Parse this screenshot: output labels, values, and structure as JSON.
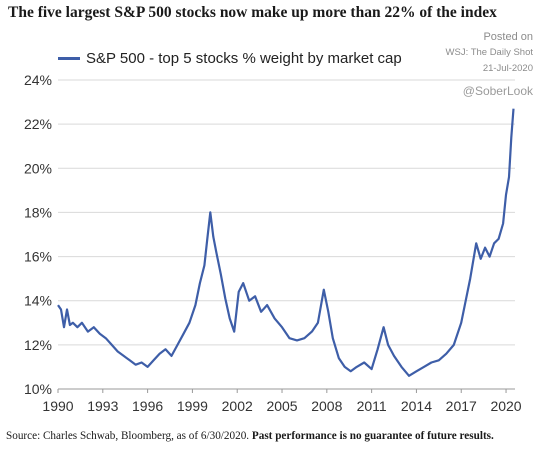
{
  "title": "The five largest S&P 500 stocks now make up more than 22% of the index",
  "credit": {
    "posted": "Posted on",
    "source": "WSJ: The Daily Shot",
    "date": "21-Jul-2020",
    "handle": "@SoberLook"
  },
  "footer": {
    "source": "Source: Charles Schwab, Bloomberg, as of 6/30/2020.",
    "disclaimer": "Past performance is no guarantee of future results."
  },
  "colors": {
    "series": "#3e5ea8",
    "grid": "#d9d9d9",
    "axis": "#999999"
  },
  "chart_data": {
    "type": "line",
    "title": "The five largest S&P 500 stocks now make up more than 22% of the index",
    "xlabel": "",
    "ylabel": "",
    "xlim": [
      1990,
      2020.6
    ],
    "ylim": [
      10,
      24
    ],
    "grid": true,
    "legend_position": "top-left",
    "x_ticks": [
      1990,
      1993,
      1996,
      1999,
      2002,
      2005,
      2008,
      2011,
      2014,
      2017,
      2020
    ],
    "y_ticks": [
      10,
      12,
      14,
      16,
      18,
      20,
      22,
      24
    ],
    "y_tick_labels": [
      "10%",
      "12%",
      "14%",
      "16%",
      "18%",
      "20%",
      "22%",
      "24%"
    ],
    "series": [
      {
        "name": "S&P 500 - top 5 stocks % weight by market cap",
        "x": [
          1990,
          1990.2,
          1990.4,
          1990.6,
          1990.8,
          1991,
          1991.3,
          1991.6,
          1992,
          1992.4,
          1992.8,
          1993.2,
          1993.6,
          1994,
          1994.4,
          1994.8,
          1995.2,
          1995.6,
          1996,
          1996.4,
          1996.8,
          1997.2,
          1997.6,
          1998,
          1998.4,
          1998.8,
          1999.2,
          1999.5,
          1999.8,
          2000,
          2000.2,
          2000.4,
          2000.6,
          2000.9,
          2001.2,
          2001.5,
          2001.8,
          2002.1,
          2002.4,
          2002.8,
          2003.2,
          2003.6,
          2004,
          2004.5,
          2005,
          2005.5,
          2006,
          2006.5,
          2007,
          2007.4,
          2007.8,
          2008.1,
          2008.4,
          2008.8,
          2009.2,
          2009.6,
          2010,
          2010.5,
          2011,
          2011.4,
          2011.8,
          2012.1,
          2012.5,
          2013,
          2013.5,
          2014,
          2014.5,
          2015,
          2015.5,
          2016,
          2016.5,
          2017,
          2017.3,
          2017.6,
          2018,
          2018.3,
          2018.6,
          2018.9,
          2019.2,
          2019.5,
          2019.8,
          2020,
          2020.2,
          2020.35,
          2020.5
        ],
        "values": [
          13.8,
          13.6,
          12.8,
          13.6,
          12.9,
          13.0,
          12.8,
          13.0,
          12.6,
          12.8,
          12.5,
          12.3,
          12.0,
          11.7,
          11.5,
          11.3,
          11.1,
          11.2,
          11.0,
          11.3,
          11.6,
          11.8,
          11.5,
          12.0,
          12.5,
          13.0,
          13.8,
          14.8,
          15.6,
          16.8,
          18.0,
          16.9,
          16.2,
          15.2,
          14.1,
          13.2,
          12.6,
          14.4,
          14.8,
          14.0,
          14.2,
          13.5,
          13.8,
          13.2,
          12.8,
          12.3,
          12.2,
          12.3,
          12.6,
          13.0,
          14.5,
          13.5,
          12.3,
          11.4,
          11.0,
          10.8,
          11.0,
          11.2,
          10.9,
          11.8,
          12.8,
          12.0,
          11.5,
          11.0,
          10.6,
          10.8,
          11.0,
          11.2,
          11.3,
          11.6,
          12.0,
          13.0,
          14.0,
          15.0,
          16.6,
          15.9,
          16.4,
          16.0,
          16.6,
          16.8,
          17.5,
          18.8,
          19.6,
          21.4,
          22.7
        ]
      }
    ]
  }
}
